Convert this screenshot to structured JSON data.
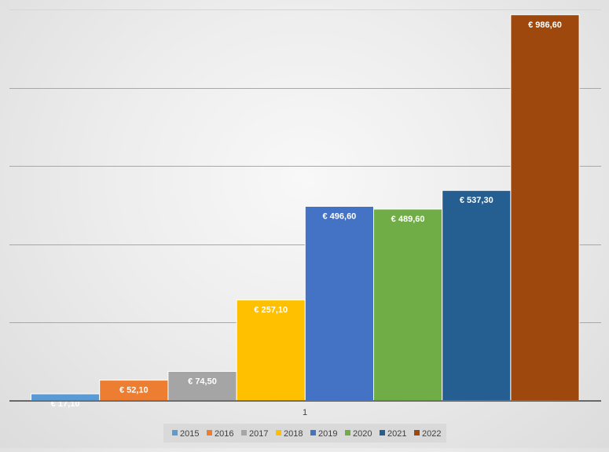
{
  "chart_data": {
    "type": "bar",
    "categories": [
      "1"
    ],
    "series": [
      {
        "name": "2015",
        "values": [
          17.1
        ],
        "label": "€  17,10",
        "color": "#5B9BD5"
      },
      {
        "name": "2016",
        "values": [
          52.1
        ],
        "label": "€  52,10",
        "color": "#ED7D31"
      },
      {
        "name": "2017",
        "values": [
          74.5
        ],
        "label": "€  74,50",
        "color": "#A5A5A5"
      },
      {
        "name": "2018",
        "values": [
          257.1
        ],
        "label": "€  257,10",
        "color": "#FFC000"
      },
      {
        "name": "2019",
        "values": [
          496.6
        ],
        "label": "€  496,60",
        "color": "#4472C4"
      },
      {
        "name": "2020",
        "values": [
          489.6
        ],
        "label": "€  489,60",
        "color": "#70AD47"
      },
      {
        "name": "2021",
        "values": [
          537.3
        ],
        "label": "€  537,30",
        "color": "#255E91"
      },
      {
        "name": "2022",
        "values": [
          986.6
        ],
        "label": "€  986,60",
        "color": "#9E480E"
      }
    ],
    "ylim": [
      0,
      1000
    ],
    "grid": true,
    "legend_position": "bottom",
    "title": "",
    "xlabel": "",
    "ylabel": ""
  }
}
